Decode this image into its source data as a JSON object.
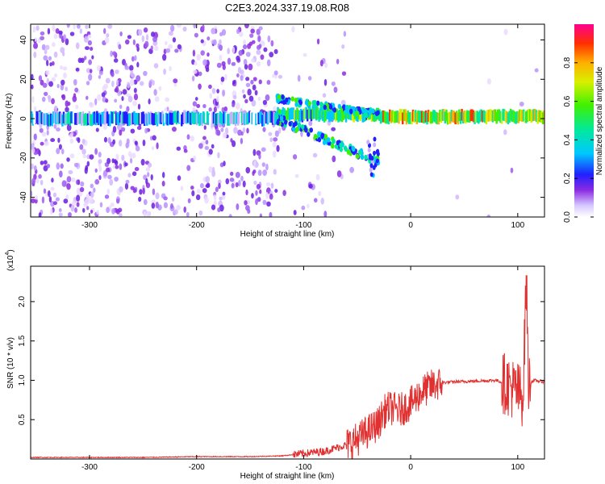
{
  "title": "C2E3.2024.337.19.08.R08",
  "chart_data": [
    {
      "type": "heatmap",
      "xlabel": "Height of straight line (km)",
      "ylabel": "Frequency (Hz)",
      "xlim": [
        -355,
        125
      ],
      "ylim": [
        -50,
        48
      ],
      "xticks": [
        -300,
        -200,
        -100,
        0,
        100
      ],
      "xtick_labels": [
        "-300",
        "-200",
        "-100",
        "0",
        "100"
      ],
      "yticks": [
        -40,
        -20,
        0,
        20,
        40
      ],
      "ytick_labels": [
        "-40",
        "-20",
        "0",
        "20",
        "40"
      ],
      "colorbar": {
        "label": "Normalized spectral amplitude",
        "range": [
          0,
          1
        ],
        "ticks": [
          0,
          0.2,
          0.4,
          0.6,
          0.8
        ],
        "tick_labels": [
          "0.0",
          "0.2",
          "0.4",
          "0.6",
          "0.8"
        ]
      },
      "features": [
        {
          "x": [
            -355,
            -125
          ],
          "y_center": 0,
          "amplitude": 0.3
        },
        {
          "x": [
            -125,
            -30
          ],
          "y_center": 2,
          "amplitude": 0.5
        },
        {
          "x": [
            -30,
            125
          ],
          "y_center": 1,
          "amplitude": 0.7
        }
      ]
    },
    {
      "type": "line",
      "xlabel": "Height of straight line (km)",
      "ylabel": "SNR (10 * v/v)",
      "y_multiplier": "(x10",
      "y_multiplier_exp": "4",
      "y_multiplier_close": ")",
      "xlim": [
        -355,
        125
      ],
      "ylim": [
        0,
        2.45
      ],
      "xticks": [
        -300,
        -200,
        -100,
        0,
        100
      ],
      "xtick_labels": [
        "-300",
        "-200",
        "-100",
        "0",
        "100"
      ],
      "yticks": [
        0.5,
        1.0,
        1.5,
        2.0
      ],
      "ytick_labels": [
        "0.5",
        "1.0",
        "1.5",
        "2.0"
      ],
      "grid": false,
      "line_color": "#e03030",
      "series": [
        {
          "x": [
            -355,
            -300,
            -250,
            -200,
            -150,
            -120,
            -100,
            -80,
            -60,
            -50,
            -40,
            -30,
            -25,
            -20,
            -10,
            0,
            10,
            20,
            30,
            40,
            60,
            80,
            90,
            95,
            100,
            105,
            108,
            110,
            115,
            125
          ],
          "y": [
            0.02,
            0.02,
            0.02,
            0.03,
            0.03,
            0.04,
            0.07,
            0.1,
            0.18,
            0.25,
            0.35,
            0.45,
            0.6,
            0.65,
            0.62,
            0.7,
            0.85,
            0.93,
            0.97,
            0.98,
            0.99,
            1.0,
            0.95,
            0.9,
            0.85,
            0.8,
            2.35,
            0.95,
            1.0,
            0.98
          ]
        }
      ]
    }
  ]
}
